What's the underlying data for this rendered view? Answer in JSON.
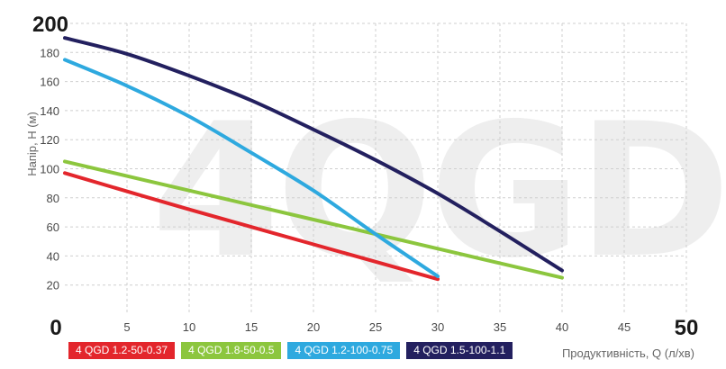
{
  "chart_data": {
    "type": "line",
    "watermark": "4QGD",
    "ylabel": "Напір, Н (м)",
    "xlabel": "Продуктивність, Q (л/хв)",
    "xlim": [
      0,
      50
    ],
    "ylim": [
      0,
      200
    ],
    "grid": true,
    "legend_position": "bottom-left",
    "x_ticks": [
      "0",
      "5",
      "10",
      "15",
      "20",
      "25",
      "30",
      "35",
      "40",
      "45",
      "50"
    ],
    "y_ticks": [
      "0",
      "20",
      "40",
      "60",
      "80",
      "100",
      "120",
      "140",
      "160",
      "180",
      "200"
    ],
    "series": [
      {
        "name": "4 QGD 1.2-50-0.37",
        "color": "#e3262c",
        "x": [
          0,
          10,
          20,
          30
        ],
        "y": [
          97,
          72,
          48,
          24
        ]
      },
      {
        "name": "4 QGD 1.8-50-0.5",
        "color": "#8cc63e",
        "x": [
          0,
          10,
          20,
          30,
          40
        ],
        "y": [
          105,
          85,
          65,
          45,
          25
        ]
      },
      {
        "name": "4 QGD 1.2-100-0.75",
        "color": "#2ea9df",
        "x": [
          0,
          5,
          10,
          15,
          20,
          25,
          30
        ],
        "y": [
          175,
          157,
          136,
          111,
          85,
          55,
          26
        ]
      },
      {
        "name": "4 QGD 1.5-100-1.1",
        "color": "#23205f",
        "x": [
          0,
          5,
          10,
          15,
          20,
          25,
          30,
          35,
          40
        ],
        "y": [
          190,
          179,
          164,
          147,
          127,
          106,
          83,
          57,
          30
        ]
      }
    ]
  }
}
